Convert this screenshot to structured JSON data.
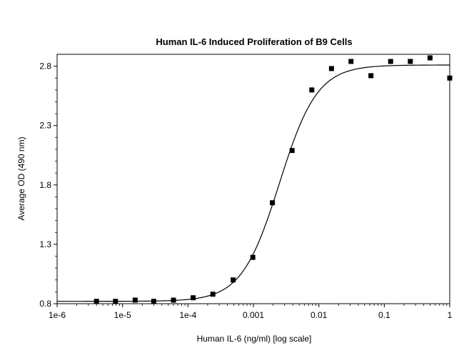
{
  "chart_data": {
    "type": "scatter",
    "title": "Human IL-6 Induced Proliferation of B9 Cells",
    "xlabel": "Human IL-6 (ng/ml) [log scale]",
    "ylabel": "Average OD (490 nm)",
    "x_scale": "log",
    "xlim": [
      1e-06,
      1
    ],
    "ylim": [
      0.8,
      2.9
    ],
    "x_ticks": [
      {
        "value": 1e-06,
        "label": "1e-6"
      },
      {
        "value": 1e-05,
        "label": "1e-5"
      },
      {
        "value": 0.0001,
        "label": "1e-4"
      },
      {
        "value": 0.001,
        "label": "0.001"
      },
      {
        "value": 0.01,
        "label": "0.01"
      },
      {
        "value": 0.1,
        "label": "0.1"
      },
      {
        "value": 1,
        "label": "1"
      }
    ],
    "y_ticks": [
      {
        "value": 0.8,
        "label": "0.8"
      },
      {
        "value": 1.3,
        "label": "1.3"
      },
      {
        "value": 1.8,
        "label": "1.8"
      },
      {
        "value": 2.3,
        "label": "2.3"
      },
      {
        "value": 2.8,
        "label": "2.8"
      }
    ],
    "grid": false,
    "legend": "none",
    "series": [
      {
        "marker": "square",
        "color": "#000000",
        "points": [
          {
            "x": 4e-06,
            "y": 0.82
          },
          {
            "x": 7.8e-06,
            "y": 0.82
          },
          {
            "x": 1.56e-05,
            "y": 0.83
          },
          {
            "x": 3e-05,
            "y": 0.82
          },
          {
            "x": 6e-05,
            "y": 0.83
          },
          {
            "x": 0.00012,
            "y": 0.85
          },
          {
            "x": 0.00024,
            "y": 0.88
          },
          {
            "x": 0.00049,
            "y": 1.0
          },
          {
            "x": 0.00098,
            "y": 1.19
          },
          {
            "x": 0.00195,
            "y": 1.65
          },
          {
            "x": 0.0039,
            "y": 2.09
          },
          {
            "x": 0.0078,
            "y": 2.6
          },
          {
            "x": 0.0156,
            "y": 2.78
          },
          {
            "x": 0.031,
            "y": 2.84
          },
          {
            "x": 0.0625,
            "y": 2.72
          },
          {
            "x": 0.125,
            "y": 2.84
          },
          {
            "x": 0.25,
            "y": 2.84
          },
          {
            "x": 0.5,
            "y": 2.87
          },
          {
            "x": 1,
            "y": 2.7
          }
        ]
      }
    ],
    "fit_curve": {
      "type": "4PL",
      "bottom": 0.82,
      "top": 2.81,
      "ec50": 0.0025,
      "hill": 1.5,
      "color": "#000000"
    }
  }
}
